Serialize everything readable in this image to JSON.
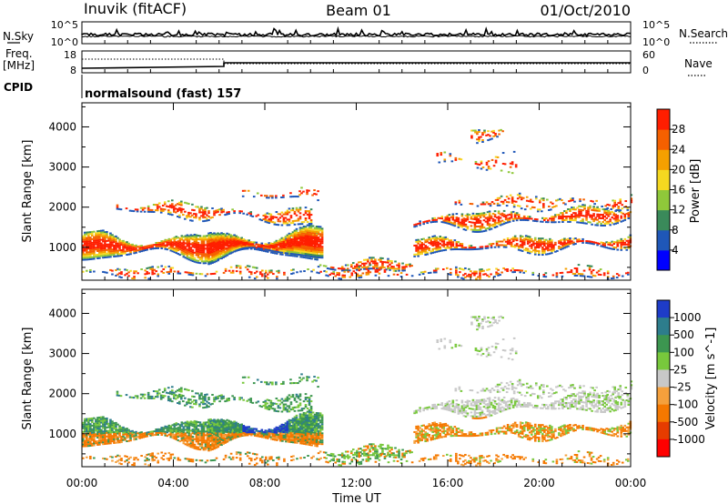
{
  "header": {
    "station": "Inuvik (fitACF)",
    "beam": "Beam 01",
    "date": "01/Oct/2010"
  },
  "panels": {
    "nsky": {
      "label": "N.Sky",
      "left_ticks": [
        "10^5",
        "10^0"
      ],
      "right_ticks": [
        "10^5",
        "10^0"
      ],
      "right_label": "N.Search"
    },
    "freq": {
      "label_line1": "Freq.",
      "label_line2": "[MHz]",
      "left_ticks": [
        "18",
        "8"
      ],
      "right_ticks": [
        "60",
        "0"
      ],
      "right_label": "Nave"
    },
    "cpid": {
      "label": "CPID",
      "value": "normalsound (fast) 157"
    }
  },
  "chart_data": [
    {
      "type": "heatmap",
      "title": "",
      "quantity": "Power",
      "colorbar_label": "Power [dB]",
      "colorbar_ticks": [
        "4",
        "8",
        "12",
        "16",
        "20",
        "24",
        "28"
      ],
      "ylabel": "Slant Range [km]",
      "ylim": [
        180,
        4600
      ],
      "yticks": [
        "1000",
        "2000",
        "3000",
        "4000"
      ],
      "xlim_hours": [
        0,
        24
      ],
      "colors": [
        "#0000ff",
        "#1f57b8",
        "#3a8a5a",
        "#8fc83a",
        "#f5d820",
        "#f5a000",
        "#f56000",
        "#ff1e00"
      ]
    },
    {
      "type": "heatmap",
      "title": "",
      "quantity": "Velocity",
      "colorbar_label": "Velocity [m s^-1]",
      "colorbar_ticks": [
        "1000",
        "500",
        "100",
        "25",
        "-25",
        "-100",
        "-500",
        "-1000"
      ],
      "ylabel": "Slant Range [km]",
      "ylim": [
        180,
        4600
      ],
      "yticks": [
        "1000",
        "2000",
        "3000",
        "4000"
      ],
      "xlim_hours": [
        0,
        24
      ],
      "colors": [
        "#1e3cc8",
        "#2d7d8c",
        "#3c9650",
        "#78c83c",
        "#c8c8c8",
        "#f5a03c",
        "#f57800",
        "#e63c00",
        "#ff0000"
      ]
    }
  ],
  "xaxis": {
    "ticks": [
      "00:00",
      "04:00",
      "08:00",
      "12:00",
      "16:00",
      "20:00",
      "00:00"
    ],
    "label": "Time UT"
  }
}
